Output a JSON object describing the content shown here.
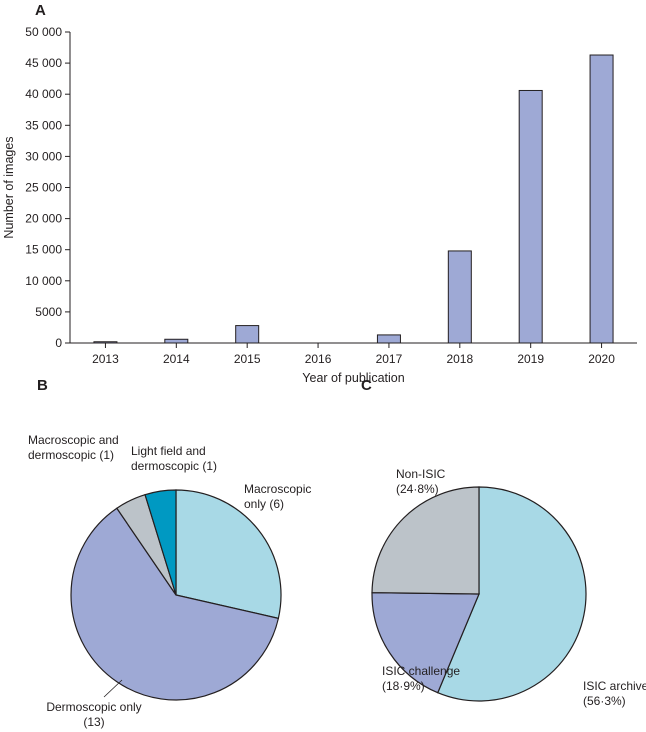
{
  "panels": {
    "a": "A",
    "b": "B",
    "c": "C"
  },
  "chart_data": [
    {
      "type": "bar",
      "title": "",
      "xlabel": "Year of publication",
      "ylabel": "Number of images",
      "categories": [
        "2013",
        "2014",
        "2015",
        "2016",
        "2017",
        "2018",
        "2019",
        "2020"
      ],
      "values": [
        200,
        600,
        2800,
        0,
        1300,
        14800,
        40600,
        46300
      ],
      "ylim": [
        0,
        50000
      ],
      "yticks": [
        0,
        5000,
        10000,
        15000,
        20000,
        25000,
        30000,
        35000,
        40000,
        45000,
        50000
      ],
      "ytick_labels": [
        "0",
        "5000",
        "10 000",
        "15 000",
        "20 000",
        "25 000",
        "30 000",
        "35 000",
        "40 000",
        "45 000",
        "50 000"
      ],
      "grid": false,
      "color": "#9ea9d5"
    },
    {
      "type": "pie",
      "title": "",
      "slices": [
        {
          "label_lines": [
            "Macroscopic",
            "only (6)"
          ],
          "value": 6,
          "color": "#a8d9e6"
        },
        {
          "label_lines": [
            "Dermoscopic only",
            "(13)"
          ],
          "value": 13,
          "color": "#9ea9d5"
        },
        {
          "label_lines": [
            "Macroscopic and",
            "dermoscopic (1)"
          ],
          "value": 1,
          "color": "#bcc3c9"
        },
        {
          "label_lines": [
            "Light field and",
            "dermoscopic (1)"
          ],
          "value": 1,
          "color": "#0099c2"
        }
      ]
    },
    {
      "type": "pie",
      "title": "",
      "slices": [
        {
          "label_lines": [
            "ISIC archive",
            "(56·3%)"
          ],
          "value": 56.3,
          "color": "#a8d9e6"
        },
        {
          "label_lines": [
            "ISIC challenge",
            "(18·9%)"
          ],
          "value": 18.9,
          "color": "#9ea9d5"
        },
        {
          "label_lines": [
            "Non-ISIC",
            "(24·8%)"
          ],
          "value": 24.8,
          "color": "#bcc3c9"
        }
      ]
    }
  ]
}
